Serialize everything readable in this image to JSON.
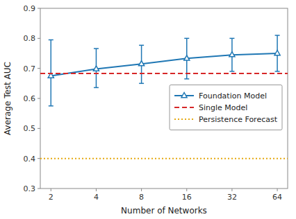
{
  "chart_data": {
    "type": "line",
    "xlabel": "Number of Networks",
    "ylabel": "Average Test AUC",
    "x": [
      2,
      4,
      8,
      16,
      32,
      64
    ],
    "log": "x",
    "xlim": [
      1.7,
      75
    ],
    "xticks": [
      2,
      4,
      8,
      16,
      32,
      64
    ],
    "ylim": [
      0.3,
      0.9
    ],
    "yticks": [
      0.3,
      0.4,
      0.5,
      0.6,
      0.7,
      0.8,
      0.9
    ],
    "grid": false,
    "legend": "right",
    "series": [
      {
        "name": "Foundation Model",
        "color": "#1f77b4",
        "marker": "triangle",
        "line_style": "solid",
        "values": [
          0.675,
          0.698,
          0.715,
          0.733,
          0.745,
          0.75
        ],
        "error_upper": [
          0.12,
          0.068,
          0.062,
          0.067,
          0.055,
          0.06
        ],
        "error_lower": [
          0.1,
          0.062,
          0.065,
          0.068,
          0.055,
          0.06
        ]
      },
      {
        "name": "Single Model",
        "color": "#d62728",
        "line_style": "dashed",
        "x": [
          1.7,
          75
        ],
        "values": [
          0.683,
          0.683
        ]
      },
      {
        "name": "Persistence Forecast",
        "color": "#e5a910",
        "line_style": "dotted",
        "x": [
          1.7,
          75
        ],
        "values": [
          0.4,
          0.4
        ]
      }
    ]
  }
}
